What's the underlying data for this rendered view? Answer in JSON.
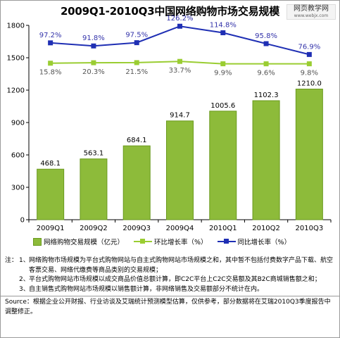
{
  "title": "2009Q1-2010Q3中国网络购物市场交易规模",
  "watermark": {
    "text": "网页教学网",
    "url": "www.webjx.com"
  },
  "colors": {
    "bar": "#8dbb3a",
    "bar_stroke": "#6a9a1e",
    "qoq_line": "#9acd32",
    "yoy_line": "#1f2fb4"
  },
  "legend": {
    "bar": "网络购物交易规模（亿元）",
    "qoq": "环比增长率（%）",
    "yoy": "同比增长率（%）"
  },
  "chart_data": {
    "type": "bar",
    "title": "2009Q1-2010Q3中国网络购物市场交易规模",
    "categories": [
      "2009Q1",
      "2009Q2",
      "2009Q3",
      "2009Q4",
      "2010Q1",
      "2010Q2",
      "2010Q3"
    ],
    "y_ticks": [
      "0",
      "300",
      "600",
      "900",
      "1200",
      "1500",
      "1800"
    ],
    "ylim": [
      0,
      1800
    ],
    "series": [
      {
        "name": "网络购物交易规模（亿元）",
        "type": "bar",
        "values": [
          468.1,
          563.1,
          684.1,
          914.7,
          1005.6,
          1102.3,
          1210.0
        ],
        "labels": [
          "468.1",
          "563.1",
          "684.1",
          "914.7",
          "1005.6",
          "1102.3",
          "1210.0"
        ]
      },
      {
        "name": "环比增长率（%）",
        "type": "line",
        "values": [
          15.8,
          20.3,
          21.5,
          33.7,
          9.9,
          9.6,
          9.8
        ],
        "labels": [
          "15.8%",
          "20.3%",
          "21.5%",
          "33.7%",
          "9.9%",
          "9.6%",
          "9.8%"
        ]
      },
      {
        "name": "同比增长率（%）",
        "type": "line",
        "values": [
          97.2,
          91.8,
          97.5,
          126.2,
          114.8,
          95.8,
          76.9
        ],
        "labels": [
          "97.2%",
          "91.8%",
          "97.5%",
          "126.2%",
          "114.8%",
          "95.8%",
          "76.9%"
        ]
      }
    ],
    "grid": false,
    "legend_position": "bottom"
  },
  "notes": {
    "head": "注：",
    "items": [
      {
        "num": "1、",
        "text": "网络购物市场规模为平台式购物网站与自主式购物网站市场规模之和，其中暂不包括付费数字产品下载、航空客票交易、网络代缴费等商品类别的交易规模；"
      },
      {
        "num": "2、",
        "text": "平台式购物网站市场规模以成交商品价值总额计算，即C2C平台上C2C交易额及其B2C商城销售额之和；"
      },
      {
        "num": "3、",
        "text": "自主销售式购物网站市场规模以销售额计算，非网络销售及交易额部分不统计在内。"
      }
    ]
  },
  "source": "Source：根据企业公开财报、行业访谈及艾瑞统计预测模型估算，仅供参考，部分数据将在艾瑞2010Q3季度报告中调整修正。"
}
